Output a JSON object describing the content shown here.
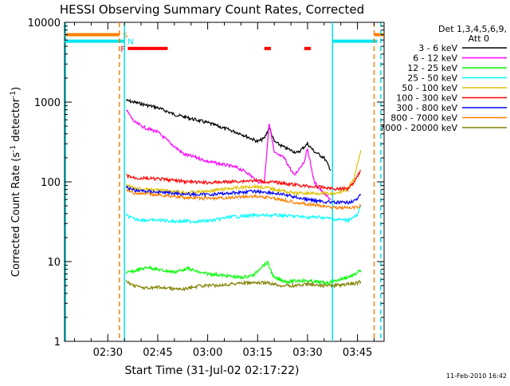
{
  "chart_data": {
    "type": "line",
    "title": "HESSI Observing Summary Count Rates, Corrected",
    "xlabel": "Start Time (31-Jul-02 02:17:22)",
    "ylabel_main": "Corrected Count Rate (s",
    "ylabel_sup1": "-1",
    "ylabel_mid": " detector",
    "ylabel_sup2": "-1",
    "ylabel_end": ")",
    "yscale": "log",
    "ylim": [
      1,
      10000
    ],
    "xlim": [
      "02:17",
      "03:53"
    ],
    "xticks": [
      "02:30",
      "02:45",
      "03:00",
      "03:15",
      "03:30",
      "03:45"
    ],
    "yticks": [
      "1",
      "10",
      "100",
      "1000",
      "10000"
    ],
    "timestamp": "11-Feb-2010 16:42",
    "legend": {
      "header": [
        "Det 1,3,4,5,6,9,",
        "Att 0"
      ],
      "placement": "right"
    },
    "flags": [
      {
        "label": "S",
        "color": "#ff7f00",
        "y": 7000,
        "segments": [
          [
            "02:17",
            "02:33.5"
          ],
          [
            "03:50",
            "03:53"
          ]
        ]
      },
      {
        "label": "N",
        "color": "#00e5ee",
        "y": 5800,
        "segments": [
          [
            "02:17",
            "02:35"
          ],
          [
            "03:37.5",
            "03:51"
          ]
        ]
      },
      {
        "label": "F",
        "color": "#ff0000",
        "y": 4700,
        "segments": [
          [
            "02:36",
            "02:48"
          ],
          [
            "03:17",
            "03:19"
          ],
          [
            "03:29",
            "03:31"
          ]
        ]
      }
    ],
    "markers": [
      {
        "type": "dashed",
        "color": "#ff7f00",
        "x": "02:33.5"
      },
      {
        "type": "dashed",
        "color": "#ff7f00",
        "x": "03:50"
      },
      {
        "type": "solid",
        "color": "#00e5ee",
        "x": "02:35"
      },
      {
        "type": "solid",
        "color": "#00e5ee",
        "x": "03:37.5"
      },
      {
        "type": "solid",
        "color": "#00e5ee",
        "x": "02:17.3"
      },
      {
        "type": "dashed",
        "color": "#00e5ee",
        "x": "03:52"
      }
    ],
    "series": [
      {
        "name": "3 - 6 keV",
        "color": "#000000",
        "x": [
          "02:35.5",
          "02:40",
          "02:45",
          "02:50",
          "02:55",
          "03:00",
          "03:05",
          "03:10",
          "03:15",
          "03:17",
          "03:18.5",
          "03:20",
          "03:23",
          "03:27",
          "03:30",
          "03:32",
          "03:35",
          "03:37"
        ],
        "y": [
          1050,
          950,
          850,
          700,
          620,
          550,
          470,
          400,
          320,
          350,
          480,
          320,
          270,
          230,
          300,
          240,
          200,
          140
        ]
      },
      {
        "name": "6 - 12 keV",
        "color": "#ff00ff",
        "x": [
          "02:35.5",
          "02:38",
          "02:41",
          "02:45",
          "02:49",
          "02:53",
          "02:57",
          "03:00",
          "03:03",
          "03:06",
          "03:09",
          "03:12",
          "03:15",
          "03:17",
          "03:18.5",
          "03:20",
          "03:23",
          "03:26",
          "03:29",
          "03:30",
          "03:32",
          "03:35",
          "03:37"
        ],
        "y": [
          800,
          560,
          480,
          420,
          300,
          220,
          200,
          180,
          170,
          160,
          150,
          130,
          100,
          100,
          550,
          230,
          200,
          120,
          180,
          260,
          100,
          70,
          60
        ]
      },
      {
        "name": "12 - 25 keV",
        "color": "#00ff00",
        "x": [
          "02:35.5",
          "02:38",
          "02:42",
          "02:46",
          "02:50",
          "02:54",
          "02:58",
          "03:02",
          "03:06",
          "03:10",
          "03:14",
          "03:16",
          "03:18",
          "03:20",
          "03:24",
          "03:28",
          "03:32",
          "03:36",
          "03:40",
          "03:44",
          "03:46"
        ],
        "y": [
          7.2,
          7.6,
          8.5,
          7.8,
          7.4,
          8.2,
          7.2,
          6.9,
          6.6,
          6.3,
          6.8,
          8.6,
          9.7,
          6.2,
          5.6,
          5.8,
          5.6,
          5.4,
          6.0,
          6.8,
          7.8
        ]
      },
      {
        "name": "25 - 50 keV",
        "color": "#00ffff",
        "x": [
          "02:35.5",
          "02:38",
          "02:42",
          "02:46",
          "02:50",
          "02:54",
          "02:58",
          "03:02",
          "03:06",
          "03:10",
          "03:14",
          "03:18",
          "03:22",
          "03:26",
          "03:30",
          "03:34",
          "03:38",
          "03:42",
          "03:45",
          "03:46"
        ],
        "y": [
          38,
          34,
          33,
          33,
          32,
          32,
          32,
          33,
          36,
          37,
          38,
          38,
          38,
          37,
          36,
          36,
          34,
          33,
          38,
          50
        ]
      },
      {
        "name": "50 - 100 keV",
        "color": "#e0c000",
        "x": [
          "02:35.5",
          "02:38",
          "02:42",
          "02:46",
          "02:50",
          "02:54",
          "02:58",
          "03:02",
          "03:06",
          "03:10",
          "03:14",
          "03:18",
          "03:22",
          "03:26",
          "03:30",
          "03:34",
          "03:38",
          "03:42",
          "03:44",
          "03:45.5",
          "03:46"
        ],
        "y": [
          92,
          82,
          80,
          78,
          76,
          74,
          75,
          78,
          82,
          85,
          88,
          84,
          78,
          72,
          72,
          72,
          70,
          80,
          110,
          200,
          250
        ]
      },
      {
        "name": "100 - 300 keV",
        "color": "#ff0000",
        "x": [
          "02:35.5",
          "02:38",
          "02:42",
          "02:46",
          "02:50",
          "02:54",
          "02:58",
          "03:02",
          "03:06",
          "03:10",
          "03:14",
          "03:18",
          "03:22",
          "03:26",
          "03:30",
          "03:34",
          "03:38",
          "03:42",
          "03:44",
          "03:45.5",
          "03:46"
        ],
        "y": [
          120,
          112,
          110,
          108,
          104,
          100,
          98,
          98,
          100,
          102,
          104,
          100,
          97,
          92,
          88,
          86,
          82,
          82,
          100,
          130,
          140
        ]
      },
      {
        "name": "300 - 800 keV",
        "color": "#0000ff",
        "x": [
          "02:35.5",
          "02:38",
          "02:42",
          "02:46",
          "02:50",
          "02:54",
          "02:58",
          "03:02",
          "03:06",
          "03:10",
          "03:14",
          "03:18",
          "03:22",
          "03:26",
          "03:30",
          "03:34",
          "03:38",
          "03:42",
          "03:45",
          "03:46"
        ],
        "y": [
          86,
          78,
          76,
          74,
          72,
          70,
          69,
          70,
          72,
          74,
          76,
          74,
          70,
          65,
          60,
          57,
          55,
          55,
          60,
          70
        ]
      },
      {
        "name": "800 - 7000 keV",
        "color": "#ff7f00",
        "x": [
          "02:35.5",
          "02:38",
          "02:42",
          "02:46",
          "02:50",
          "02:54",
          "02:58",
          "03:02",
          "03:06",
          "03:10",
          "03:14",
          "03:18",
          "03:22",
          "03:26",
          "03:30",
          "03:34",
          "03:38",
          "03:42",
          "03:45",
          "03:46"
        ],
        "y": [
          80,
          72,
          70,
          68,
          66,
          63,
          62,
          62,
          63,
          65,
          66,
          64,
          60,
          56,
          52,
          50,
          48,
          47,
          48,
          50
        ]
      },
      {
        "name": "7000 - 20000 keV",
        "color": "#808000",
        "x": [
          "02:35.5",
          "02:38",
          "02:42",
          "02:46",
          "02:50",
          "02:54",
          "02:58",
          "03:02",
          "03:06",
          "03:10",
          "03:14",
          "03:18",
          "03:22",
          "03:26",
          "03:30",
          "03:34",
          "03:38",
          "03:42",
          "03:45",
          "03:46"
        ],
        "y": [
          5.6,
          5.0,
          4.6,
          4.8,
          4.5,
          4.6,
          5.0,
          5.0,
          5.2,
          5.4,
          5.4,
          5.4,
          5.0,
          5.0,
          5.2,
          5.0,
          5.0,
          5.2,
          5.4,
          5.6
        ]
      }
    ]
  }
}
